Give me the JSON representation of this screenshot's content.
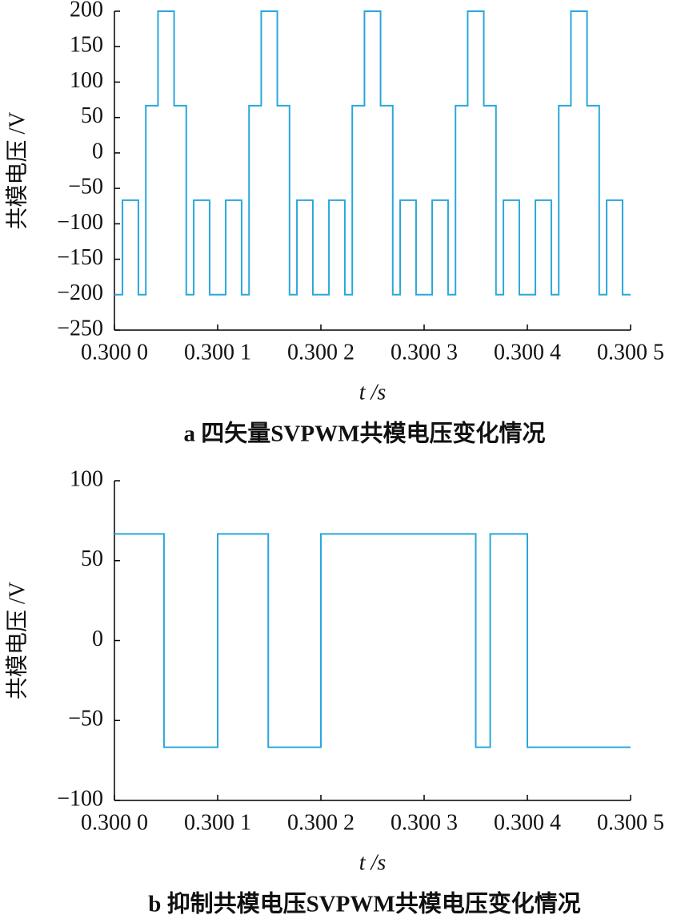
{
  "chart_data": [
    {
      "type": "line",
      "step": "post",
      "color": "#2aa6dc",
      "title": "a  四矢量SVPWM共模电压变化情况",
      "ylabel": "共模电压 /V",
      "xlabel": "t /s",
      "xlim": [
        0.3,
        0.3005
      ],
      "xticks": [
        {
          "value": 0.3,
          "label": "0.300 0"
        },
        {
          "value": 0.3001,
          "label": "0.300 1"
        },
        {
          "value": 0.3002,
          "label": "0.300 2"
        },
        {
          "value": 0.3003,
          "label": "0.300 3"
        },
        {
          "value": 0.3004,
          "label": "0.300 4"
        },
        {
          "value": 0.3005,
          "label": "0.300 5"
        }
      ],
      "ylim": [
        -250,
        200
      ],
      "yticks": [
        200,
        150,
        100,
        50,
        0,
        {
          "value": -50,
          "label": "−50"
        },
        {
          "value": -100,
          "label": "−100"
        },
        {
          "value": -150,
          "label": "−150"
        },
        {
          "value": -200,
          "label": "−200"
        },
        {
          "value": -250,
          "label": "−250"
        }
      ],
      "x": [
        0.3,
        0.3000078,
        0.3000232,
        0.3000304,
        0.3000422,
        0.3000578,
        0.3000696,
        0.3000768,
        0.3000922,
        0.3001078,
        0.3001232,
        0.3001304,
        0.3001422,
        0.3001578,
        0.3001696,
        0.3001768,
        0.3001922,
        0.3002078,
        0.3002232,
        0.3002304,
        0.3002422,
        0.3002578,
        0.3002696,
        0.3002768,
        0.3002922,
        0.3003078,
        0.3003232,
        0.3003304,
        0.3003422,
        0.3003578,
        0.3003696,
        0.3003768,
        0.3003922,
        0.3004078,
        0.3004232,
        0.3004304,
        0.3004422,
        0.3004578,
        0.3004696,
        0.3004768,
        0.3004922,
        0.3005
      ],
      "values": [
        -200,
        -66.7,
        -200,
        66.7,
        200,
        66.7,
        -200,
        -66.7,
        -200,
        -66.7,
        -200,
        66.7,
        200,
        66.7,
        -200,
        -66.7,
        -200,
        -66.7,
        -200,
        66.7,
        200,
        66.7,
        -200,
        -66.7,
        -200,
        -66.7,
        -200,
        66.7,
        200,
        66.7,
        -200,
        -66.7,
        -200,
        -66.7,
        -200,
        66.7,
        200,
        66.7,
        -200,
        -66.7,
        -200,
        -200
      ]
    },
    {
      "type": "line",
      "step": "post",
      "color": "#2aa6dc",
      "title": "b  抑制共模电压SVPWM共模电压变化情况",
      "ylabel": "共模电压 /V",
      "xlabel": "t /s",
      "xlim": [
        0.3,
        0.3005
      ],
      "xticks": [
        {
          "value": 0.3,
          "label": "0.300 0"
        },
        {
          "value": 0.3001,
          "label": "0.300 1"
        },
        {
          "value": 0.3002,
          "label": "0.300 2"
        },
        {
          "value": 0.3003,
          "label": "0.300 3"
        },
        {
          "value": 0.3004,
          "label": "0.300 4"
        },
        {
          "value": 0.3005,
          "label": "0.300 5"
        }
      ],
      "ylim": [
        -100,
        100
      ],
      "yticks": [
        100,
        50,
        0,
        {
          "value": -50,
          "label": "−50"
        },
        {
          "value": -100,
          "label": "−100"
        }
      ],
      "x": [
        0.3,
        0.300048,
        0.3001,
        0.300149,
        0.3002,
        0.30035,
        0.300364,
        0.3004,
        0.3005
      ],
      "values": [
        66.7,
        -66.7,
        66.7,
        -66.7,
        66.7,
        -66.7,
        66.7,
        -66.7,
        -66.7
      ]
    }
  ]
}
